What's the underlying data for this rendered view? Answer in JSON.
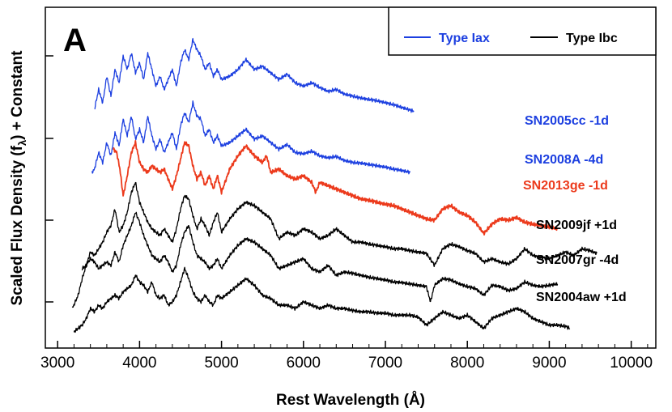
{
  "chart_data": {
    "type": "line",
    "title": "",
    "panel_label": "A",
    "xlabel": "Rest Wavelength (Å)",
    "ylabel_main": "Scaled Flux Density (f",
    "ylabel_sub": "λ",
    "ylabel_end": ") + Constant",
    "xlim": [
      2850,
      10300
    ],
    "xticks": [
      3000,
      4000,
      5000,
      6000,
      7000,
      8000,
      9000,
      10000
    ],
    "y_tick_labels_shown": false,
    "grid": false,
    "legend_position": "top-right",
    "legend": [
      {
        "label": "Type Iax",
        "color": "#1c3fe0"
      },
      {
        "label": "Type Ibc",
        "color": "#000000"
      }
    ],
    "series": [
      {
        "name": "SN2005cc -1d",
        "class": "Type Iax",
        "color": "#1c3fe0",
        "x": [
          3450,
          3500,
          3550,
          3600,
          3650,
          3700,
          3750,
          3800,
          3850,
          3900,
          3950,
          4000,
          4050,
          4100,
          4150,
          4200,
          4250,
          4300,
          4350,
          4400,
          4450,
          4500,
          4550,
          4600,
          4650,
          4700,
          4750,
          4800,
          4850,
          4900,
          4950,
          5000,
          5100,
          5200,
          5300,
          5400,
          5500,
          5600,
          5700,
          5800,
          5900,
          6000,
          6100,
          6200,
          6300,
          6400,
          6500,
          6600,
          6700,
          6800,
          6900,
          7000,
          7100,
          7200,
          7350
        ],
        "y": [
          0.95,
          1.25,
          1.05,
          1.45,
          1.15,
          1.55,
          1.35,
          1.75,
          1.55,
          1.8,
          1.5,
          1.65,
          1.4,
          1.8,
          1.55,
          1.3,
          1.45,
          1.25,
          1.4,
          1.55,
          1.3,
          1.65,
          1.85,
          1.7,
          2.0,
          1.85,
          1.75,
          1.55,
          1.65,
          1.45,
          1.55,
          1.4,
          1.45,
          1.55,
          1.7,
          1.55,
          1.6,
          1.5,
          1.4,
          1.48,
          1.35,
          1.3,
          1.35,
          1.28,
          1.22,
          1.25,
          1.18,
          1.15,
          1.12,
          1.1,
          1.08,
          1.05,
          1.02,
          0.98,
          0.92
        ]
      },
      {
        "name": "SN2008A -4d",
        "class": "Type Iax",
        "color": "#1c3fe0",
        "x": [
          3420,
          3450,
          3500,
          3550,
          3600,
          3650,
          3700,
          3750,
          3800,
          3850,
          3900,
          3950,
          4000,
          4050,
          4100,
          4150,
          4200,
          4250,
          4300,
          4350,
          4400,
          4450,
          4500,
          4550,
          4600,
          4650,
          4700,
          4750,
          4800,
          4850,
          4900,
          4950,
          5000,
          5100,
          5200,
          5300,
          5400,
          5500,
          5600,
          5700,
          5800,
          5900,
          6000,
          6100,
          6200,
          6300,
          6400,
          6500,
          6600,
          6700,
          6800,
          6900,
          7000,
          7100,
          7200,
          7300
        ],
        "y": [
          0.0,
          0.05,
          0.3,
          0.15,
          0.45,
          0.25,
          0.6,
          0.4,
          0.8,
          0.55,
          0.85,
          0.5,
          0.65,
          0.45,
          0.85,
          0.55,
          0.35,
          0.5,
          0.3,
          0.45,
          0.6,
          0.35,
          0.7,
          0.9,
          0.75,
          1.05,
          0.85,
          0.8,
          0.55,
          0.65,
          0.45,
          0.55,
          0.4,
          0.45,
          0.55,
          0.65,
          0.5,
          0.55,
          0.45,
          0.35,
          0.42,
          0.3,
          0.28,
          0.32,
          0.25,
          0.22,
          0.24,
          0.18,
          0.15,
          0.14,
          0.12,
          0.1,
          0.08,
          0.05,
          0.03,
          0.0
        ]
      },
      {
        "name": "SN2013ge -1d",
        "class": "Type Ibc",
        "color": "#ec3a1c",
        "x": [
          3680,
          3720,
          3760,
          3800,
          3850,
          3900,
          3950,
          4000,
          4050,
          4100,
          4150,
          4200,
          4250,
          4300,
          4350,
          4400,
          4450,
          4500,
          4550,
          4600,
          4650,
          4700,
          4750,
          4800,
          4850,
          4900,
          4950,
          5000,
          5100,
          5200,
          5300,
          5400,
          5500,
          5550,
          5600,
          5700,
          5800,
          5900,
          6000,
          6100,
          6150,
          6200,
          6300,
          6400,
          6500,
          6600,
          6700,
          6800,
          6900,
          7000,
          7100,
          7200,
          7300,
          7400,
          7500,
          7600,
          7700,
          7800,
          7900,
          8000,
          8100,
          8200,
          8300,
          8400,
          8500,
          8600,
          8700,
          8800,
          8900,
          9000,
          9100
        ],
        "y": [
          0.35,
          0.3,
          0.05,
          -0.35,
          -0.05,
          0.3,
          0.45,
          0.15,
          0.05,
          0.0,
          0.1,
          0.05,
          0.0,
          0.05,
          -0.1,
          -0.25,
          -0.05,
          0.2,
          0.45,
          0.4,
          0.1,
          -0.1,
          0.0,
          -0.2,
          -0.05,
          -0.25,
          -0.05,
          -0.3,
          0.05,
          0.25,
          0.4,
          0.25,
          0.15,
          0.25,
          0.0,
          0.05,
          -0.05,
          -0.1,
          -0.05,
          -0.15,
          -0.3,
          -0.15,
          -0.2,
          -0.25,
          -0.3,
          -0.35,
          -0.4,
          -0.42,
          -0.45,
          -0.48,
          -0.5,
          -0.55,
          -0.6,
          -0.65,
          -0.7,
          -0.72,
          -0.55,
          -0.5,
          -0.6,
          -0.65,
          -0.75,
          -0.92,
          -0.78,
          -0.7,
          -0.72,
          -0.68,
          -0.75,
          -0.78,
          -0.8,
          -0.82,
          -0.85
        ]
      },
      {
        "name": "SN2009jf +1d",
        "class": "Type Ibc",
        "color": "#000000",
        "x": [
          3180,
          3250,
          3300,
          3350,
          3400,
          3450,
          3500,
          3550,
          3600,
          3650,
          3700,
          3750,
          3800,
          3850,
          3900,
          3950,
          4000,
          4050,
          4100,
          4150,
          4200,
          4250,
          4300,
          4350,
          4400,
          4450,
          4500,
          4550,
          4600,
          4650,
          4700,
          4750,
          4800,
          4850,
          4900,
          4950,
          5000,
          5100,
          5200,
          5300,
          5400,
          5500,
          5600,
          5700,
          5800,
          5900,
          6000,
          6100,
          6200,
          6300,
          6400,
          6500,
          6600,
          6700,
          6800,
          6900,
          7000,
          7100,
          7200,
          7300,
          7400,
          7500,
          7600,
          7700,
          7800,
          7900,
          8000,
          8100,
          8200,
          8300,
          8400,
          8500,
          8600,
          8700,
          8800,
          8900,
          9000,
          9100,
          9200,
          9300,
          9400,
          9500,
          9580
        ],
        "y": [
          -2.05,
          -1.85,
          -1.6,
          -1.4,
          -1.2,
          -1.25,
          -1.15,
          -1.05,
          -0.9,
          -0.8,
          -0.55,
          -0.9,
          -0.8,
          -0.6,
          -0.3,
          -0.15,
          -0.45,
          -0.6,
          -0.75,
          -0.85,
          -0.9,
          -0.95,
          -0.85,
          -0.95,
          -1.05,
          -0.85,
          -0.55,
          -0.35,
          -0.4,
          -0.65,
          -0.85,
          -0.7,
          -0.8,
          -0.95,
          -0.75,
          -0.6,
          -0.9,
          -0.7,
          -0.55,
          -0.45,
          -0.5,
          -0.6,
          -0.7,
          -1.0,
          -0.9,
          -0.95,
          -0.85,
          -0.9,
          -1.0,
          -0.95,
          -0.85,
          -0.95,
          -1.05,
          -1.05,
          -1.08,
          -1.1,
          -1.12,
          -1.15,
          -1.15,
          -1.18,
          -1.2,
          -1.22,
          -1.4,
          -1.15,
          -1.08,
          -1.12,
          -1.18,
          -1.22,
          -1.35,
          -1.3,
          -1.35,
          -1.38,
          -1.3,
          -1.15,
          -1.25,
          -1.28,
          -1.3,
          -1.25,
          -1.2,
          -1.25,
          -1.15,
          -1.18,
          -1.22
        ]
      },
      {
        "name": "SN2007gr -4d",
        "class": "Type Ibc",
        "color": "#000000",
        "x": [
          3300,
          3350,
          3400,
          3450,
          3500,
          3550,
          3600,
          3650,
          3700,
          3750,
          3800,
          3850,
          3900,
          3950,
          4000,
          4050,
          4100,
          4150,
          4200,
          4250,
          4300,
          4350,
          4400,
          4450,
          4500,
          4550,
          4600,
          4650,
          4700,
          4750,
          4800,
          4850,
          4900,
          4950,
          5000,
          5100,
          5200,
          5300,
          5400,
          5500,
          5600,
          5700,
          5800,
          5900,
          6000,
          6100,
          6200,
          6300,
          6400,
          6500,
          6600,
          6700,
          6800,
          6900,
          7000,
          7100,
          7200,
          7300,
          7400,
          7500,
          7550,
          7600,
          7700,
          7800,
          7900,
          8000,
          8100,
          8200,
          8300,
          8400,
          8500,
          8600,
          8700,
          8800,
          8900,
          9000,
          9100
        ],
        "y": [
          -1.45,
          -1.4,
          -1.3,
          -1.35,
          -1.45,
          -1.4,
          -1.35,
          -1.4,
          -1.2,
          -1.35,
          -1.1,
          -0.95,
          -0.8,
          -0.6,
          -0.75,
          -0.95,
          -1.1,
          -1.25,
          -1.3,
          -1.35,
          -1.25,
          -1.35,
          -1.5,
          -1.4,
          -1.1,
          -0.9,
          -0.8,
          -1.05,
          -1.25,
          -1.3,
          -1.35,
          -1.45,
          -1.4,
          -1.3,
          -1.45,
          -1.25,
          -1.1,
          -1.0,
          -1.05,
          -1.15,
          -1.25,
          -1.45,
          -1.4,
          -1.35,
          -1.3,
          -1.45,
          -1.5,
          -1.4,
          -1.55,
          -1.5,
          -1.52,
          -1.55,
          -1.58,
          -1.6,
          -1.62,
          -1.65,
          -1.66,
          -1.68,
          -1.7,
          -1.72,
          -1.95,
          -1.7,
          -1.6,
          -1.62,
          -1.68,
          -1.72,
          -1.75,
          -1.85,
          -1.7,
          -1.72,
          -1.78,
          -1.75,
          -1.65,
          -1.7,
          -1.72,
          -1.7,
          -1.68
        ]
      },
      {
        "name": "SN2004aw +1d",
        "class": "Type Ibc",
        "color": "#000000",
        "x": [
          3200,
          3250,
          3300,
          3350,
          3400,
          3450,
          3500,
          3550,
          3600,
          3650,
          3700,
          3750,
          3800,
          3850,
          3900,
          3950,
          4000,
          4050,
          4100,
          4150,
          4200,
          4250,
          4300,
          4350,
          4400,
          4450,
          4500,
          4550,
          4600,
          4650,
          4700,
          4750,
          4800,
          4850,
          4900,
          4950,
          5000,
          5100,
          5200,
          5300,
          5400,
          5500,
          5600,
          5700,
          5800,
          5900,
          6000,
          6100,
          6200,
          6300,
          6400,
          6500,
          6600,
          6700,
          6800,
          6900,
          7000,
          7100,
          7200,
          7300,
          7400,
          7500,
          7600,
          7700,
          7800,
          7900,
          8000,
          8100,
          8200,
          8300,
          8400,
          8500,
          8600,
          8700,
          8800,
          8900,
          9000,
          9100,
          9200,
          9250
        ],
        "y": [
          -2.4,
          -2.35,
          -2.3,
          -2.2,
          -2.05,
          -2.1,
          -2.0,
          -2.05,
          -1.95,
          -1.9,
          -1.85,
          -1.9,
          -1.8,
          -1.75,
          -1.7,
          -1.55,
          -1.65,
          -1.7,
          -1.8,
          -1.65,
          -1.85,
          -1.9,
          -1.85,
          -2.0,
          -1.95,
          -1.85,
          -1.65,
          -1.45,
          -1.6,
          -1.8,
          -1.9,
          -1.95,
          -1.85,
          -1.95,
          -2.0,
          -1.85,
          -1.9,
          -1.8,
          -1.7,
          -1.6,
          -1.7,
          -1.85,
          -1.9,
          -2.0,
          -2.0,
          -2.05,
          -1.95,
          -2.0,
          -2.05,
          -2.0,
          -2.05,
          -2.05,
          -2.08,
          -2.1,
          -2.1,
          -2.12,
          -2.12,
          -2.15,
          -2.15,
          -2.15,
          -2.18,
          -2.3,
          -2.2,
          -2.1,
          -2.15,
          -2.2,
          -2.15,
          -2.25,
          -2.35,
          -2.2,
          -2.15,
          -2.1,
          -2.05,
          -2.1,
          -2.2,
          -2.25,
          -2.3,
          -2.3,
          -2.32,
          -2.35
        ]
      }
    ]
  }
}
